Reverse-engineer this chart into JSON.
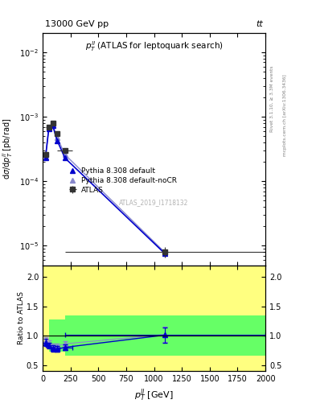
{
  "title_top": "13000 GeV pp",
  "title_right": "tt",
  "subplot_title": "$p_T^{ll}$ (ATLAS for leptoquark search)",
  "watermark": "ATLAS_2019_I1718132",
  "xlabel": "$p_T^{ll}$ [GeV]",
  "ylabel_main": "d$\\sigma$/d$p_T^{ll}$ [pb/rad]",
  "ylabel_ratio": "Ratio to ATLAS",
  "right_label": "Rivet 3.1.10, ≥ 3.3M events",
  "right_label2": "mcplots.cern.ch [arXiv:1306.3436]",
  "atlas_x": [
    25,
    55,
    90,
    130,
    200,
    1100
  ],
  "atlas_y": [
    0.00026,
    0.0007,
    0.0008,
    0.00055,
    0.0003,
    8e-06
  ],
  "atlas_xerr_lo": [
    25,
    25,
    20,
    20,
    70,
    900
  ],
  "atlas_xerr_hi": [
    5,
    5,
    20,
    20,
    70,
    900
  ],
  "atlas_yerr": [
    3e-05,
    5e-05,
    6e-05,
    4e-05,
    2e-05,
    1.5e-06
  ],
  "pythia_default_x": [
    25,
    55,
    90,
    130,
    200,
    1100
  ],
  "pythia_default_y": [
    0.00023,
    0.00065,
    0.00073,
    0.00043,
    0.00023,
    7.5e-06
  ],
  "pythia_nocr_x": [
    25,
    55,
    90,
    130,
    200,
    1100
  ],
  "pythia_nocr_y": [
    0.00024,
    0.00067,
    0.00075,
    0.00048,
    0.00026,
    7.8e-06
  ],
  "ratio_pythia_default_x": [
    25,
    55,
    90,
    130,
    200,
    1100
  ],
  "ratio_pythia_default_y": [
    0.88,
    0.83,
    0.78,
    0.77,
    0.8,
    1.01
  ],
  "ratio_pythia_default_yerr": [
    0.06,
    0.05,
    0.05,
    0.05,
    0.05,
    0.13
  ],
  "ratio_pythia_default_xerr_lo": [
    25,
    25,
    20,
    20,
    70,
    900
  ],
  "ratio_pythia_default_xerr_hi": [
    5,
    5,
    20,
    20,
    70,
    900
  ],
  "ratio_pythia_nocr_x": [
    25,
    55,
    90,
    130,
    200,
    1100
  ],
  "ratio_pythia_nocr_y": [
    0.92,
    0.87,
    0.82,
    0.82,
    0.86,
    1.02
  ],
  "ratio_pythia_nocr_yerr": [
    0.06,
    0.05,
    0.05,
    0.05,
    0.05,
    0.13
  ],
  "ylim_main": [
    5e-06,
    0.02
  ],
  "ylim_ratio": [
    0.4,
    2.2
  ],
  "xlim": [
    0,
    2000
  ],
  "color_atlas": "#333333",
  "color_pythia_default": "#0000cc",
  "color_pythia_nocr": "#8888cc",
  "color_yellow": "#ffff80",
  "color_green": "#66ff66",
  "background_color": "#ffffff"
}
